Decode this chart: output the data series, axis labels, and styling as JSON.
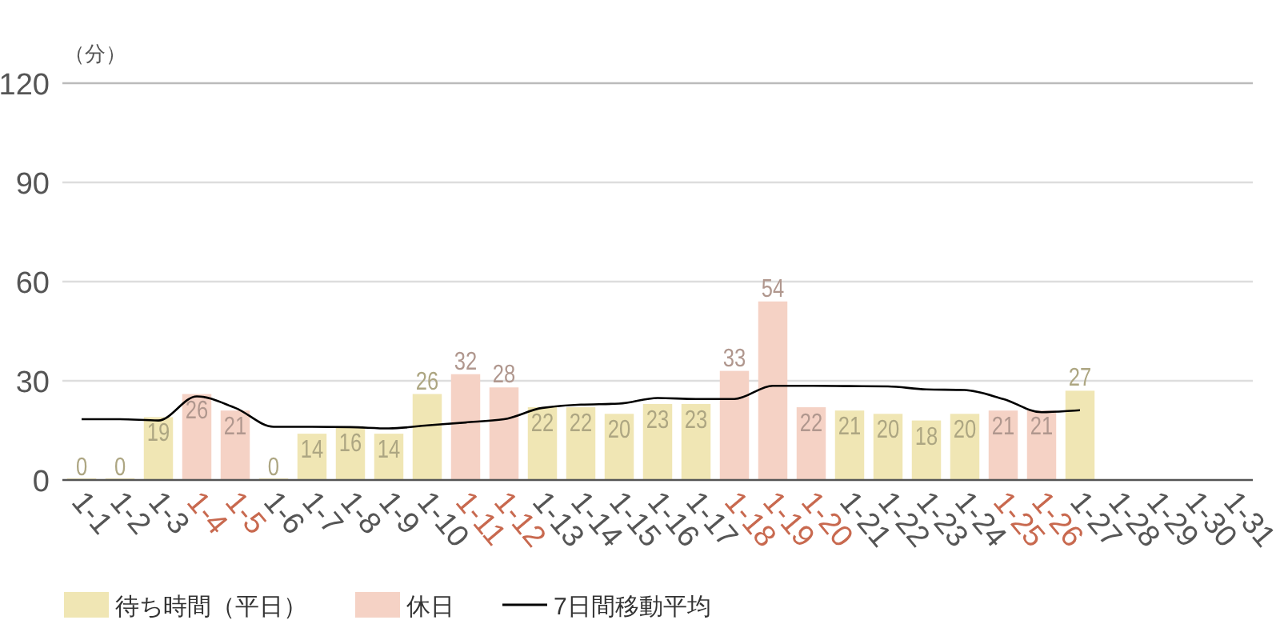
{
  "chart_data": {
    "type": "bar",
    "ylabel": "（分）",
    "categories": [
      "1-1",
      "1-2",
      "1-3",
      "1-4",
      "1-5",
      "1-6",
      "1-7",
      "1-8",
      "1-9",
      "1-10",
      "1-11",
      "1-12",
      "1-13",
      "1-14",
      "1-15",
      "1-16",
      "1-17",
      "1-18",
      "1-19",
      "1-20",
      "1-21",
      "1-22",
      "1-23",
      "1-24",
      "1-25",
      "1-26",
      "1-27",
      "1-28",
      "1-29",
      "1-30",
      "1-31"
    ],
    "series": [
      {
        "name": "待ち時間（平日）",
        "color": "#f0e6b4",
        "values": [
          0,
          0,
          19,
          null,
          null,
          0,
          14,
          16,
          14,
          26,
          null,
          null,
          22,
          22,
          20,
          23,
          23,
          null,
          null,
          null,
          21,
          20,
          18,
          20,
          null,
          null,
          27,
          null,
          null,
          null,
          null
        ],
        "value_labels": [
          "0",
          "0",
          "19",
          null,
          null,
          "0",
          "14",
          "16",
          "14",
          "26",
          null,
          null,
          "22",
          "22",
          "20",
          "23",
          "23",
          null,
          null,
          null,
          "21",
          "20",
          "18",
          "20",
          null,
          null,
          "27",
          null,
          null,
          null,
          null
        ]
      },
      {
        "name": "休日",
        "color": "#f5d2c5",
        "values": [
          null,
          null,
          null,
          26,
          21,
          null,
          null,
          null,
          null,
          null,
          32,
          28,
          null,
          null,
          null,
          null,
          null,
          33,
          54,
          22,
          null,
          null,
          null,
          null,
          21,
          21,
          null,
          null,
          null,
          null,
          null
        ],
        "value_labels": [
          null,
          null,
          null,
          "26",
          "21",
          null,
          null,
          null,
          null,
          null,
          "32",
          "28",
          null,
          null,
          null,
          null,
          null,
          "33",
          "54",
          "22",
          null,
          null,
          null,
          null,
          "21",
          "21",
          null,
          null,
          null,
          null,
          null
        ]
      },
      {
        "name": "7日間移動平均",
        "type": "line",
        "color": "#000000",
        "values": [
          18.4,
          18.4,
          18,
          25.3,
          21.8,
          16.1,
          16.1,
          16,
          15.6,
          16.5,
          17.4,
          18.4,
          21.8,
          22.8,
          23.1,
          24.8,
          24.5,
          24.5,
          28.5,
          28.5,
          28.4,
          28.3,
          27.4,
          27.2,
          24.5,
          20.5,
          21.1,
          null,
          null,
          null,
          null
        ]
      }
    ],
    "ylim": [
      0,
      120
    ],
    "yticks": [
      0,
      30,
      60,
      90,
      120
    ],
    "grid": "y",
    "legend": "bottom",
    "marker": "none",
    "line_style": "solid"
  }
}
